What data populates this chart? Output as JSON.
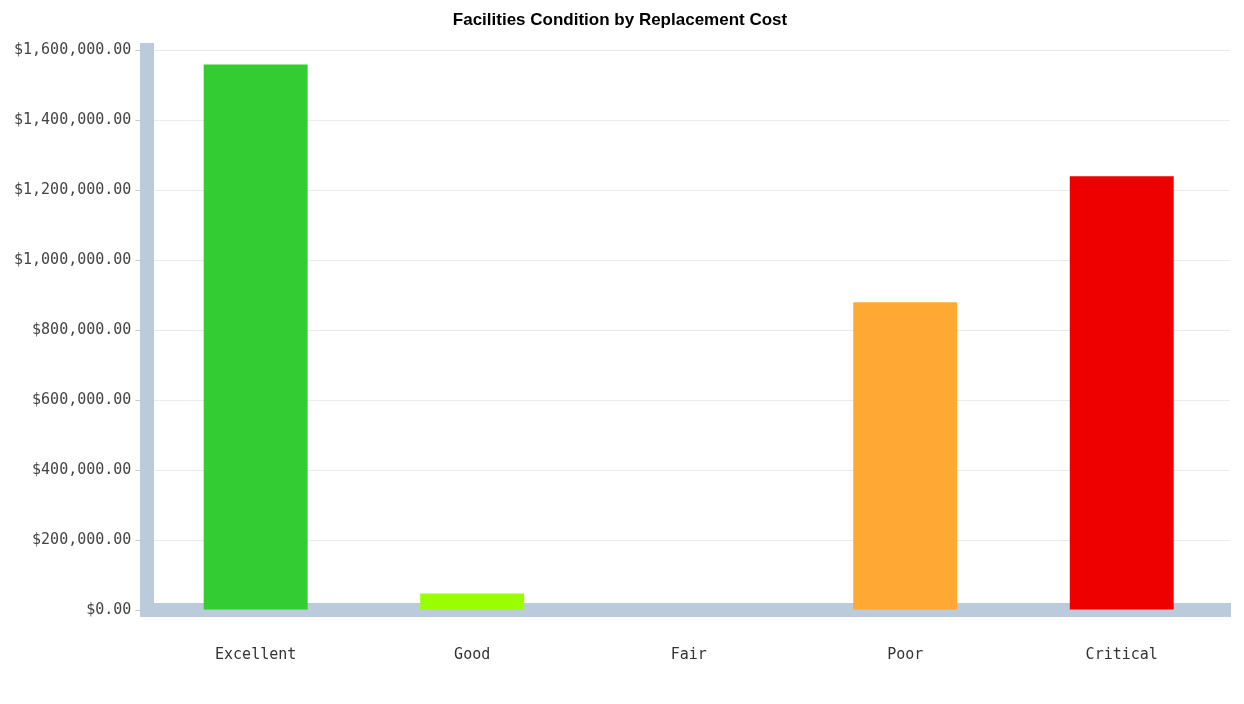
{
  "chart_data": {
    "type": "bar",
    "title": "Facilities Condition by Replacement Cost",
    "categories": [
      "Excellent",
      "Good",
      "Fair",
      "Poor",
      "Critical"
    ],
    "values": [
      1560000,
      47000,
      0,
      880000,
      1240000
    ],
    "colors": [
      "#33cc33",
      "#99ff00",
      "#ffdd00",
      "#ffa833",
      "#ee0000"
    ],
    "ylim": [
      0,
      1600000
    ],
    "yticks": [
      {
        "value": 0,
        "label": "$0.00"
      },
      {
        "value": 200000,
        "label": "$200,000.00"
      },
      {
        "value": 400000,
        "label": "$400,000.00"
      },
      {
        "value": 600000,
        "label": "$600,000.00"
      },
      {
        "value": 800000,
        "label": "$800,000.00"
      },
      {
        "value": 1000000,
        "label": "$1,000,000.00"
      },
      {
        "value": 1200000,
        "label": "$1,200,000.00"
      },
      {
        "value": 1400000,
        "label": "$1,400,000.00"
      },
      {
        "value": 1600000,
        "label": "$1,600,000.00"
      }
    ],
    "grid": "y",
    "legend": false
  }
}
